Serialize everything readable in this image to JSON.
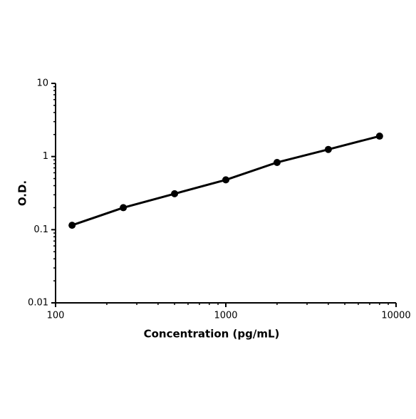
{
  "chart_data": {
    "type": "line",
    "x_label": "Concentration (pg/mL)",
    "y_label": "O.D.",
    "x": [
      125,
      250,
      500,
      1000,
      2000,
      4000,
      8000
    ],
    "series": [
      {
        "values": [
          0.115,
          0.2,
          0.31,
          0.48,
          0.83,
          1.25,
          1.9
        ],
        "color": "#000000"
      }
    ],
    "xlim": [
      100,
      10000
    ],
    "ylim": [
      0.01,
      10
    ],
    "xticks": [
      100,
      1000,
      10000
    ],
    "yticks": [
      0.01,
      0.1,
      1,
      10
    ],
    "xminorticks": [
      200,
      300,
      400,
      500,
      600,
      700,
      800,
      900,
      2000,
      3000,
      4000,
      5000,
      6000,
      7000,
      8000,
      9000
    ],
    "yminorticks": [
      0.02,
      0.03,
      0.04,
      0.05,
      0.06,
      0.07,
      0.08,
      0.09,
      0.2,
      0.3,
      0.4,
      0.5,
      0.6,
      0.7,
      0.8,
      0.9,
      2,
      3,
      4,
      5,
      6,
      7,
      8,
      9
    ],
    "xlog": true,
    "ylog": true,
    "grid": false
  }
}
